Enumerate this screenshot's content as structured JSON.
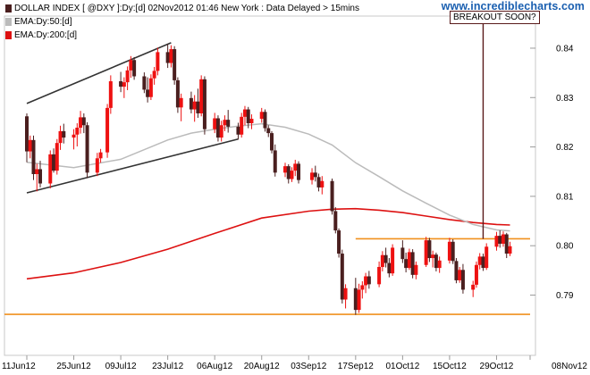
{
  "header": {
    "legend_main": "DOLLAR INDEX [ @DXY ]:Dy:[d]  02Nov2012 01:46 New York : Data Delayed > 15mins",
    "legend_ema50": "EMA:Dy:50:[d]",
    "legend_ema200": "EMA:Dy:200:[d]",
    "site": "www.incrediblecharts.com"
  },
  "colors": {
    "candle_up": "#ee1111",
    "candle_down": "#4a1f1f",
    "ema50": "#bbbbbb",
    "ema200": "#dd1111",
    "trendline": "#333333",
    "support_resistance": "#f0901e",
    "note_line": "#5a1a1a"
  },
  "chart_data": {
    "type": "candlestick",
    "symbol": "@DXY",
    "annotation": "BREAKOUT SOON?",
    "x_ticks": [
      "11Jun12",
      "25Jun12",
      "09Jul12",
      "23Jul12",
      "06Aug12",
      "20Aug12",
      "03Sep12",
      "17Sep12",
      "01Oct12",
      "15Oct12",
      "29Oct12",
      "08Nov12"
    ],
    "y_ticks": [
      0.79,
      0.8,
      0.81,
      0.82,
      0.83,
      0.84
    ],
    "ylim": [
      0.7825,
      0.8465
    ],
    "grid": false,
    "horizontal_lines": [
      0.8014,
      0.7861
    ],
    "trendlines": [
      {
        "from": [
          "11Jun12",
          0.8288
        ],
        "to": [
          "24Jul12",
          0.8411
        ]
      },
      {
        "from": [
          "11Jun12",
          0.8107
        ],
        "to": [
          "13Aug12",
          0.8216
        ]
      }
    ],
    "candles": [
      {
        "date": "11Jun12",
        "open": 0.8262,
        "high": 0.8268,
        "low": 0.8169,
        "close": 0.8191
      },
      {
        "date": "12Jun12",
        "open": 0.8191,
        "high": 0.8223,
        "low": 0.8177,
        "close": 0.8214
      },
      {
        "date": "13Jun12",
        "open": 0.8214,
        "high": 0.8223,
        "low": 0.8133,
        "close": 0.8145
      },
      {
        "date": "14Jun12",
        "open": 0.8145,
        "high": 0.8166,
        "low": 0.811,
        "close": 0.8155
      },
      {
        "date": "15Jun12",
        "open": 0.8155,
        "high": 0.8172,
        "low": 0.8118,
        "close": 0.8126
      },
      {
        "date": "18Jun12",
        "open": 0.8126,
        "high": 0.8193,
        "low": 0.8116,
        "close": 0.8185
      },
      {
        "date": "19Jun12",
        "open": 0.8185,
        "high": 0.8197,
        "low": 0.8148,
        "close": 0.8152
      },
      {
        "date": "20Jun12",
        "open": 0.8152,
        "high": 0.8216,
        "low": 0.8144,
        "close": 0.8208
      },
      {
        "date": "21Jun12",
        "open": 0.8208,
        "high": 0.8243,
        "low": 0.8194,
        "close": 0.8232
      },
      {
        "date": "22Jun12",
        "open": 0.8232,
        "high": 0.8247,
        "low": 0.8207,
        "close": 0.8219
      },
      {
        "date": "25Jun12",
        "open": 0.8219,
        "high": 0.8236,
        "low": 0.8195,
        "close": 0.8225
      },
      {
        "date": "26Jun12",
        "open": 0.8225,
        "high": 0.8248,
        "low": 0.8201,
        "close": 0.8239
      },
      {
        "date": "27Jun12",
        "open": 0.8239,
        "high": 0.8273,
        "low": 0.8227,
        "close": 0.826
      },
      {
        "date": "28Jun12",
        "open": 0.826,
        "high": 0.8268,
        "low": 0.8228,
        "close": 0.8244
      },
      {
        "date": "29Jun12",
        "open": 0.8244,
        "high": 0.825,
        "low": 0.8137,
        "close": 0.8148
      },
      {
        "date": "02Jul12",
        "open": 0.8148,
        "high": 0.8188,
        "low": 0.8141,
        "close": 0.8177
      },
      {
        "date": "03Jul12",
        "open": 0.8177,
        "high": 0.8196,
        "low": 0.8168,
        "close": 0.8189
      },
      {
        "date": "05Jul12",
        "open": 0.8189,
        "high": 0.8287,
        "low": 0.8178,
        "close": 0.8279
      },
      {
        "date": "06Jul12",
        "open": 0.8279,
        "high": 0.8345,
        "low": 0.8267,
        "close": 0.8333
      },
      {
        "date": "09Jul12",
        "open": 0.8333,
        "high": 0.8352,
        "low": 0.8311,
        "close": 0.8322
      },
      {
        "date": "10Jul12",
        "open": 0.8322,
        "high": 0.8341,
        "low": 0.8299,
        "close": 0.8331
      },
      {
        "date": "11Jul12",
        "open": 0.8331,
        "high": 0.8363,
        "low": 0.8315,
        "close": 0.8355
      },
      {
        "date": "12Jul12",
        "open": 0.8355,
        "high": 0.8384,
        "low": 0.834,
        "close": 0.8376
      },
      {
        "date": "13Jul12",
        "open": 0.8376,
        "high": 0.8382,
        "low": 0.8336,
        "close": 0.8343
      },
      {
        "date": "16Jul12",
        "open": 0.8343,
        "high": 0.8351,
        "low": 0.8309,
        "close": 0.8316
      },
      {
        "date": "17Jul12",
        "open": 0.8316,
        "high": 0.8341,
        "low": 0.829,
        "close": 0.8301
      },
      {
        "date": "18Jul12",
        "open": 0.8301,
        "high": 0.8347,
        "low": 0.8295,
        "close": 0.8339
      },
      {
        "date": "19Jul12",
        "open": 0.8339,
        "high": 0.8362,
        "low": 0.8326,
        "close": 0.8354
      },
      {
        "date": "20Jul12",
        "open": 0.8354,
        "high": 0.8401,
        "low": 0.8345,
        "close": 0.8392
      },
      {
        "date": "23Jul12",
        "open": 0.8392,
        "high": 0.8408,
        "low": 0.836,
        "close": 0.837
      },
      {
        "date": "24Jul12",
        "open": 0.837,
        "high": 0.8406,
        "low": 0.8361,
        "close": 0.8398
      },
      {
        "date": "25Jul12",
        "open": 0.8398,
        "high": 0.8404,
        "low": 0.8326,
        "close": 0.8335
      },
      {
        "date": "26Jul12",
        "open": 0.8335,
        "high": 0.8341,
        "low": 0.8269,
        "close": 0.828
      },
      {
        "date": "27Jul12",
        "open": 0.828,
        "high": 0.8308,
        "low": 0.8252,
        "close": 0.8299
      },
      {
        "date": "30Jul12",
        "open": 0.8299,
        "high": 0.8312,
        "low": 0.8268,
        "close": 0.8276
      },
      {
        "date": "31Jul12",
        "open": 0.8276,
        "high": 0.8305,
        "low": 0.8251,
        "close": 0.8292
      },
      {
        "date": "01Aug12",
        "open": 0.8292,
        "high": 0.8318,
        "low": 0.8259,
        "close": 0.8268
      },
      {
        "date": "02Aug12",
        "open": 0.8268,
        "high": 0.8345,
        "low": 0.8262,
        "close": 0.8337
      },
      {
        "date": "03Aug12",
        "open": 0.8337,
        "high": 0.8343,
        "low": 0.8225,
        "close": 0.8236
      },
      {
        "date": "06Aug12",
        "open": 0.8236,
        "high": 0.8269,
        "low": 0.8228,
        "close": 0.8258
      },
      {
        "date": "07Aug12",
        "open": 0.8258,
        "high": 0.8264,
        "low": 0.8211,
        "close": 0.8219
      },
      {
        "date": "08Aug12",
        "open": 0.8219,
        "high": 0.8253,
        "low": 0.8211,
        "close": 0.8244
      },
      {
        "date": "09Aug12",
        "open": 0.8244,
        "high": 0.8264,
        "low": 0.8232,
        "close": 0.8255
      },
      {
        "date": "10Aug12",
        "open": 0.8255,
        "high": 0.8275,
        "low": 0.8229,
        "close": 0.8241
      },
      {
        "date": "13Aug12",
        "open": 0.8241,
        "high": 0.8249,
        "low": 0.8215,
        "close": 0.8225
      },
      {
        "date": "14Aug12",
        "open": 0.8225,
        "high": 0.8269,
        "low": 0.8219,
        "close": 0.8261
      },
      {
        "date": "15Aug12",
        "open": 0.8261,
        "high": 0.8283,
        "low": 0.8244,
        "close": 0.8276
      },
      {
        "date": "16Aug12",
        "open": 0.8276,
        "high": 0.8281,
        "low": 0.8238,
        "close": 0.8248
      },
      {
        "date": "17Aug12",
        "open": 0.8248,
        "high": 0.8266,
        "low": 0.8236,
        "close": 0.8257
      },
      {
        "date": "20Aug12",
        "open": 0.8257,
        "high": 0.8279,
        "low": 0.8249,
        "close": 0.8271
      },
      {
        "date": "21Aug12",
        "open": 0.8271,
        "high": 0.8276,
        "low": 0.8231,
        "close": 0.8238
      },
      {
        "date": "22Aug12",
        "open": 0.8238,
        "high": 0.8244,
        "low": 0.822,
        "close": 0.8228
      },
      {
        "date": "23Aug12",
        "open": 0.8228,
        "high": 0.8232,
        "low": 0.8187,
        "close": 0.8193
      },
      {
        "date": "24Aug12",
        "open": 0.8193,
        "high": 0.8205,
        "low": 0.814,
        "close": 0.8148
      },
      {
        "date": "27Aug12",
        "open": 0.8148,
        "high": 0.8168,
        "low": 0.8139,
        "close": 0.8161
      },
      {
        "date": "28Aug12",
        "open": 0.8161,
        "high": 0.8165,
        "low": 0.8126,
        "close": 0.8135
      },
      {
        "date": "29Aug12",
        "open": 0.8135,
        "high": 0.8159,
        "low": 0.8129,
        "close": 0.8152
      },
      {
        "date": "30Aug12",
        "open": 0.8152,
        "high": 0.8174,
        "low": 0.8141,
        "close": 0.8166
      },
      {
        "date": "31Aug12",
        "open": 0.8166,
        "high": 0.8171,
        "low": 0.8126,
        "close": 0.8133
      },
      {
        "date": "04Sep12",
        "open": 0.8133,
        "high": 0.8157,
        "low": 0.8124,
        "close": 0.8148
      },
      {
        "date": "05Sep12",
        "open": 0.8148,
        "high": 0.8162,
        "low": 0.813,
        "close": 0.8139
      },
      {
        "date": "06Sep12",
        "open": 0.8139,
        "high": 0.8146,
        "low": 0.811,
        "close": 0.8118
      },
      {
        "date": "07Sep12",
        "open": 0.8118,
        "high": 0.8141,
        "low": 0.8104,
        "close": 0.8131
      },
      {
        "date": "10Sep12",
        "open": 0.8131,
        "high": 0.8136,
        "low": 0.8063,
        "close": 0.807
      },
      {
        "date": "11Sep12",
        "open": 0.807,
        "high": 0.8078,
        "low": 0.8025,
        "close": 0.8031
      },
      {
        "date": "12Sep12",
        "open": 0.8031,
        "high": 0.8035,
        "low": 0.7976,
        "close": 0.7984
      },
      {
        "date": "13Sep12",
        "open": 0.7984,
        "high": 0.7992,
        "low": 0.7883,
        "close": 0.7891
      },
      {
        "date": "14Sep12",
        "open": 0.7891,
        "high": 0.7922,
        "low": 0.7873,
        "close": 0.7914
      },
      {
        "date": "17Sep12",
        "open": 0.7914,
        "high": 0.7935,
        "low": 0.786,
        "close": 0.787
      },
      {
        "date": "18Sep12",
        "open": 0.787,
        "high": 0.7923,
        "low": 0.7864,
        "close": 0.7911
      },
      {
        "date": "19Sep12",
        "open": 0.7911,
        "high": 0.7928,
        "low": 0.7893,
        "close": 0.792
      },
      {
        "date": "20Sep12",
        "open": 0.792,
        "high": 0.7945,
        "low": 0.7904,
        "close": 0.7938
      },
      {
        "date": "21Sep12",
        "open": 0.7938,
        "high": 0.7949,
        "low": 0.7913,
        "close": 0.7922
      },
      {
        "date": "24Sep12",
        "open": 0.7922,
        "high": 0.7968,
        "low": 0.7916,
        "close": 0.7957
      },
      {
        "date": "25Sep12",
        "open": 0.7957,
        "high": 0.7989,
        "low": 0.7948,
        "close": 0.7981
      },
      {
        "date": "26Sep12",
        "open": 0.7981,
        "high": 0.7996,
        "low": 0.7956,
        "close": 0.7965
      },
      {
        "date": "27Sep12",
        "open": 0.7965,
        "high": 0.7975,
        "low": 0.7936,
        "close": 0.7944
      },
      {
        "date": "28Sep12",
        "open": 0.7944,
        "high": 0.8003,
        "low": 0.7939,
        "close": 0.7996
      },
      {
        "date": "01Oct12",
        "open": 0.7996,
        "high": 0.8011,
        "low": 0.7965,
        "close": 0.7973
      },
      {
        "date": "02Oct12",
        "open": 0.7973,
        "high": 0.7986,
        "low": 0.7946,
        "close": 0.7955
      },
      {
        "date": "03Oct12",
        "open": 0.7955,
        "high": 0.7994,
        "low": 0.7951,
        "close": 0.7987
      },
      {
        "date": "04Oct12",
        "open": 0.7987,
        "high": 0.7993,
        "low": 0.7934,
        "close": 0.7941
      },
      {
        "date": "05Oct12",
        "open": 0.7941,
        "high": 0.7968,
        "low": 0.7932,
        "close": 0.7961
      },
      {
        "date": "08Oct12",
        "open": 0.7961,
        "high": 0.8018,
        "low": 0.7957,
        "close": 0.8011
      },
      {
        "date": "09Oct12",
        "open": 0.8011,
        "high": 0.8016,
        "low": 0.7967,
        "close": 0.7975
      },
      {
        "date": "10Oct12",
        "open": 0.7975,
        "high": 0.799,
        "low": 0.7956,
        "close": 0.7982
      },
      {
        "date": "11Oct12",
        "open": 0.7982,
        "high": 0.7986,
        "low": 0.7948,
        "close": 0.7955
      },
      {
        "date": "12Oct12",
        "open": 0.7955,
        "high": 0.7978,
        "low": 0.7945,
        "close": 0.797
      },
      {
        "date": "15Oct12",
        "open": 0.797,
        "high": 0.8016,
        "low": 0.7964,
        "close": 0.8008
      },
      {
        "date": "16Oct12",
        "open": 0.8008,
        "high": 0.8013,
        "low": 0.7963,
        "close": 0.7969
      },
      {
        "date": "17Oct12",
        "open": 0.7969,
        "high": 0.7975,
        "low": 0.7924,
        "close": 0.793
      },
      {
        "date": "18Oct12",
        "open": 0.793,
        "high": 0.7957,
        "low": 0.7925,
        "close": 0.7951
      },
      {
        "date": "19Oct12",
        "open": 0.7951,
        "high": 0.7963,
        "low": 0.7903,
        "close": 0.7911
      },
      {
        "date": "22Oct12",
        "open": 0.7911,
        "high": 0.7929,
        "low": 0.7896,
        "close": 0.7921
      },
      {
        "date": "23Oct12",
        "open": 0.7921,
        "high": 0.7968,
        "low": 0.7915,
        "close": 0.7961
      },
      {
        "date": "24Oct12",
        "open": 0.7961,
        "high": 0.7985,
        "low": 0.7952,
        "close": 0.7978
      },
      {
        "date": "25Oct12",
        "open": 0.7978,
        "high": 0.7984,
        "low": 0.7949,
        "close": 0.7955
      },
      {
        "date": "26Oct12",
        "open": 0.7955,
        "high": 0.8005,
        "low": 0.7951,
        "close": 0.7998
      },
      {
        "date": "29Oct12",
        "open": 0.7998,
        "high": 0.8028,
        "low": 0.799,
        "close": 0.802
      },
      {
        "date": "30Oct12",
        "open": 0.802,
        "high": 0.8031,
        "low": 0.7996,
        "close": 0.8004
      },
      {
        "date": "31Oct12",
        "open": 0.8004,
        "high": 0.8029,
        "low": 0.7998,
        "close": 0.8023
      },
      {
        "date": "01Nov12",
        "open": 0.8023,
        "high": 0.8026,
        "low": 0.7975,
        "close": 0.7984
      },
      {
        "date": "02Nov12",
        "open": 0.7984,
        "high": 0.8008,
        "low": 0.7979,
        "close": 0.7999
      }
    ],
    "series": [
      {
        "name": "EMA:Dy:50:[d]",
        "points": [
          [
            "11Jun12",
            0.8169
          ],
          [
            "25Jun12",
            0.8158
          ],
          [
            "09Jul12",
            0.8175
          ],
          [
            "23Jul12",
            0.8214
          ],
          [
            "30Jul12",
            0.8228
          ],
          [
            "06Aug12",
            0.8236
          ],
          [
            "13Aug12",
            0.8242
          ],
          [
            "20Aug12",
            0.8247
          ],
          [
            "27Aug12",
            0.824
          ],
          [
            "03Sep12",
            0.8226
          ],
          [
            "10Sep12",
            0.8204
          ],
          [
            "17Sep12",
            0.8168
          ],
          [
            "24Sep12",
            0.814
          ],
          [
            "01Oct12",
            0.8111
          ],
          [
            "08Oct12",
            0.8086
          ],
          [
            "15Oct12",
            0.8062
          ],
          [
            "22Oct12",
            0.8043
          ],
          [
            "29Oct12",
            0.8032
          ],
          [
            "02Nov12",
            0.803
          ]
        ]
      },
      {
        "name": "EMA:Dy:200:[d]",
        "points": [
          [
            "11Jun12",
            0.7933
          ],
          [
            "25Jun12",
            0.7945
          ],
          [
            "09Jul12",
            0.7966
          ],
          [
            "23Jul12",
            0.7993
          ],
          [
            "06Aug12",
            0.8025
          ],
          [
            "20Aug12",
            0.8056
          ],
          [
            "03Sep12",
            0.807
          ],
          [
            "10Sep12",
            0.8074
          ],
          [
            "17Sep12",
            0.8075
          ],
          [
            "24Sep12",
            0.8072
          ],
          [
            "01Oct12",
            0.8067
          ],
          [
            "08Oct12",
            0.806
          ],
          [
            "15Oct12",
            0.8053
          ],
          [
            "22Oct12",
            0.8047
          ],
          [
            "29Oct12",
            0.8043
          ],
          [
            "02Nov12",
            0.8042
          ]
        ]
      }
    ]
  }
}
